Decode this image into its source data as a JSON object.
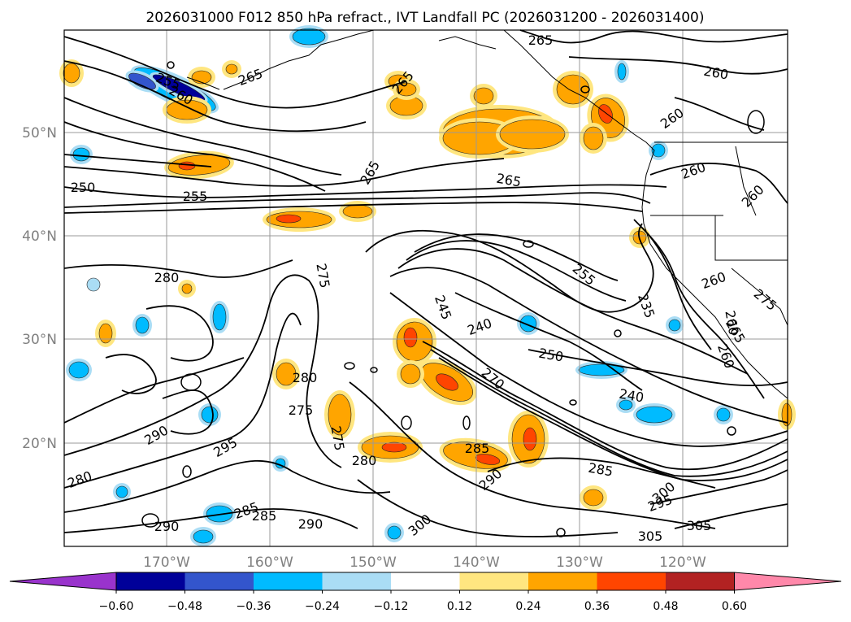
{
  "title": "2026031000 F012 850 hPa refract., IVT Landfall PC (2026031200 - 2026031400)",
  "lat_labels": [
    "50°N",
    "40°N",
    "30°N",
    "20°N"
  ],
  "lon_labels": [
    "170°W",
    "160°W",
    "150°W",
    "140°W",
    "130°W",
    "120°W"
  ],
  "colorbar": {
    "ticks": [
      "−0.60",
      "−0.48",
      "−0.36",
      "−0.24",
      "−0.12",
      "0.12",
      "0.24",
      "0.36",
      "0.48",
      "0.60"
    ],
    "colors": [
      "#9933cc",
      "#000099",
      "#3355cc",
      "#00bbff",
      "#aaddf5",
      "#ffffff",
      "#ffe680",
      "#ffa500",
      "#ff4500",
      "#b22222",
      "#ff88aa"
    ]
  },
  "contour_labels": [
    "265",
    "255",
    "260",
    "265",
    "265",
    "260",
    "250",
    "255",
    "265",
    "265",
    "260",
    "260",
    "260",
    "260",
    "280",
    "275",
    "245",
    "240",
    "255",
    "235",
    "250",
    "240",
    "270",
    "260",
    "275",
    "265",
    "260",
    "280",
    "275",
    "275",
    "290",
    "295",
    "285",
    "280",
    "290",
    "285",
    "285",
    "295",
    "300",
    "305",
    "305",
    "290",
    "280",
    "285",
    "290",
    "300"
  ],
  "colors": {
    "contour": "#000000",
    "coast": "#000000",
    "grid": "#999999"
  }
}
